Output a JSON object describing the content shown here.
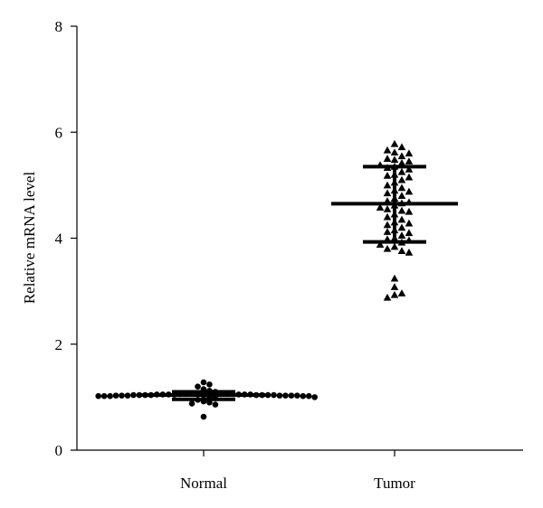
{
  "chart_data": {
    "type": "scatter",
    "title": "",
    "xlabel": "",
    "ylabel": "Relative mRNA level",
    "ylim": [
      0,
      8
    ],
    "yticks": [
      0,
      2,
      4,
      6,
      8
    ],
    "grid": false,
    "legend": "none",
    "categories": [
      "Normal",
      "Tumor"
    ],
    "series": [
      {
        "category": "Normal",
        "marker": "circle",
        "color": "#000000",
        "mean": 1.04,
        "sd_upper": 1.1,
        "sd_lower": 0.96,
        "points": [
          1.04,
          1.03,
          1.05,
          1.02,
          1.06,
          1.04,
          1.03,
          1.05,
          1.04,
          1.02,
          1.06,
          1.03,
          1.05,
          1.04,
          1.07,
          1.01,
          1.04,
          1.03,
          1.05,
          1.02,
          1.06,
          1.04,
          1.03,
          1.05,
          1.04,
          1.02,
          1.06,
          1.03,
          1.05,
          1.04,
          1.1,
          1.12,
          1.15,
          1.08,
          1.0,
          0.98,
          0.95,
          0.92,
          0.9,
          0.88,
          0.86,
          1.2,
          1.24,
          1.28,
          0.63,
          1.04,
          1.03,
          1.05,
          1.06,
          1.02
        ]
      },
      {
        "category": "Tumor",
        "marker": "triangle",
        "color": "#000000",
        "mean": 4.65,
        "sd_upper": 5.35,
        "sd_lower": 3.93,
        "points": [
          5.78,
          5.72,
          5.66,
          5.6,
          5.55,
          5.5,
          5.45,
          5.42,
          5.38,
          5.35,
          5.3,
          5.25,
          5.2,
          5.15,
          5.1,
          5.05,
          5.0,
          4.95,
          4.9,
          4.85,
          4.8,
          4.75,
          4.7,
          4.66,
          4.62,
          4.58,
          4.55,
          4.5,
          4.45,
          4.4,
          4.35,
          4.3,
          4.25,
          4.2,
          4.15,
          4.1,
          4.05,
          4.0,
          3.96,
          3.92,
          3.88,
          3.84,
          3.8,
          3.76,
          3.73,
          5.62,
          5.48,
          5.33,
          5.18,
          4.88,
          4.68,
          4.52,
          4.28,
          4.12,
          3.98,
          3.24,
          3.08,
          2.96,
          2.93,
          2.88
        ]
      }
    ]
  }
}
